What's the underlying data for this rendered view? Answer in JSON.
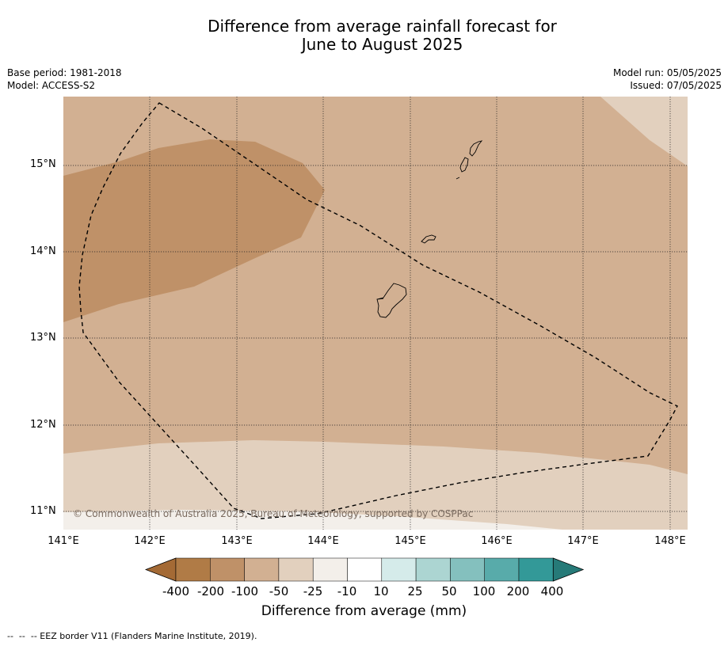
{
  "title": {
    "line1": "Difference from average rainfall forecast for",
    "line2": "June to August 2025"
  },
  "meta": {
    "base_period": "Base period: 1981-2018",
    "model": "Model: ACCESS-S2",
    "model_run": "Model run: 05/05/2025",
    "issued": "Issued: 07/05/2025"
  },
  "map": {
    "extent": {
      "lon": [
        141.0,
        148.2
      ],
      "lat": [
        10.8,
        15.8
      ]
    },
    "lat_labels": [
      {
        "value": 15,
        "text": "15°N"
      },
      {
        "value": 14,
        "text": "14°N"
      },
      {
        "value": 13,
        "text": "13°N"
      },
      {
        "value": 12,
        "text": "12°N"
      },
      {
        "value": 11,
        "text": "11°N"
      }
    ],
    "lon_labels": [
      {
        "value": 141,
        "text": "141°E"
      },
      {
        "value": 142,
        "text": "142°E"
      },
      {
        "value": 143,
        "text": "143°E"
      },
      {
        "value": 144,
        "text": "144°E"
      },
      {
        "value": 145,
        "text": "145°E"
      },
      {
        "value": 146,
        "text": "146°E"
      },
      {
        "value": 147,
        "text": "147°E"
      },
      {
        "value": 148,
        "text": "148°E"
      }
    ],
    "copyright": "© Commonwealth of Australia 2025, Bureau of Meteorology, supported by COSPPac",
    "colors": {
      "n200_to_n100": "#bf9168",
      "n100_to_n50": "#d2b092",
      "n50_to_n25": "#e2d0be",
      "n25_to_n10": "#f3efea"
    }
  },
  "colorbar": {
    "labels": [
      "-400",
      "-200",
      "-100",
      "-50",
      "-25",
      "-10",
      "10",
      "25",
      "50",
      "100",
      "200",
      "400"
    ],
    "colors": [
      "#a46a35",
      "#b07b46",
      "#bf9168",
      "#d2b092",
      "#e2d0be",
      "#f3efea",
      "#ffffff",
      "#d5ebea",
      "#acd5d2",
      "#84c0be",
      "#58abaa",
      "#339998",
      "#267a78"
    ],
    "title": "Difference from average (mm)"
  },
  "footnote": "--  --  -- EEZ border V11 (Flanders Marine Institute, 2019)."
}
